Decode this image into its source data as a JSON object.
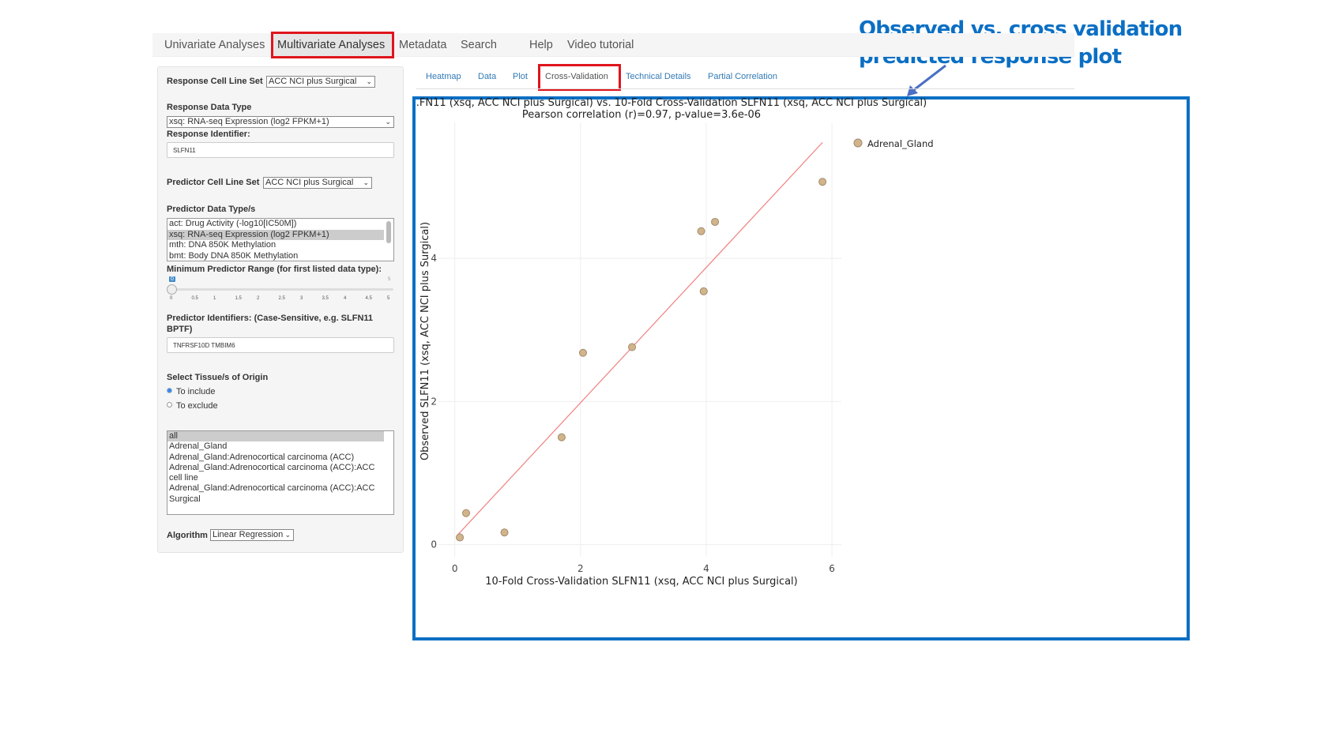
{
  "annotation": {
    "line1": "Observed vs. cross validation",
    "line2": "predicted response plot"
  },
  "navbar": {
    "items": [
      "Univariate Analyses",
      "Multivariate Analyses",
      "Metadata",
      "Search",
      "Help",
      "Video tutorial"
    ],
    "active": "Multivariate Analyses"
  },
  "sidebar": {
    "response_cell_line_set_label": "Response Cell Line Set",
    "response_cell_line_set": "ACC NCI plus Surgical",
    "response_data_type_label": "Response Data Type",
    "response_data_type": "xsq: RNA-seq Expression (log2 FPKM+1)",
    "response_identifier_label": "Response Identifier:",
    "response_identifier": "SLFN11",
    "predictor_cell_line_set_label": "Predictor Cell Line Set",
    "predictor_cell_line_set": "ACC NCI plus Surgical",
    "predictor_data_types_label": "Predictor Data Type/s",
    "predictor_data_types": [
      "act: Drug Activity (-log10[IC50M])",
      "xsq: RNA-seq Expression (log2 FPKM+1)",
      "mth: DNA 850K Methylation",
      "bmt: Body DNA 850K Methylation"
    ],
    "min_range_label": "Minimum Predictor Range (for first listed data type):",
    "slider": {
      "value": "0",
      "max_label": "5",
      "ticks": [
        "0",
        "0.5",
        "1",
        "1.5",
        "2",
        "2.5",
        "3",
        "3.5",
        "4",
        "4.5",
        "5"
      ]
    },
    "predictor_identifiers_label": "Predictor Identifiers: (Case-Sensitive, e.g. SLFN11 BPTF)",
    "predictor_identifiers": "TNFRSF10D TMBIM6",
    "tissue_label": "Select Tissue/s of Origin",
    "radio_include": "To include",
    "radio_exclude": "To exclude",
    "tissues": [
      "all",
      "Adrenal_Gland",
      "Adrenal_Gland:Adrenocortical carcinoma (ACC)",
      "Adrenal_Gland:Adrenocortical carcinoma (ACC):ACC cell line",
      "Adrenal_Gland:Adrenocortical carcinoma (ACC):ACC Surgical"
    ],
    "algorithm_label": "Algorithm",
    "algorithm": "Linear Regression"
  },
  "tabs": [
    "Heatmap",
    "Data",
    "Plot",
    "Cross-Validation",
    "Technical Details",
    "Partial Correlation"
  ],
  "colors": {
    "accent": "#0b6fc4",
    "highlight": "#e0141c",
    "point": "#d2b48c",
    "fit": "#f08080"
  },
  "chart_data": {
    "type": "scatter",
    "title": ".FN11 (xsq, ACC NCI plus Surgical) vs. 10-Fold Cross-Validation SLFN11 (xsq, ACC NCI plus Surgical)",
    "subtitle": "Pearson correlation (r)=0.97, p-value=3.6e-06",
    "xlabel": "10-Fold Cross-Validation SLFN11 (xsq, ACC NCI plus Surgical)",
    "ylabel": "Observed SLFN11 (xsq, ACC NCI plus Surgical)",
    "xlim": [
      -0.26,
      6.15
    ],
    "ylim": [
      -0.17,
      5.9
    ],
    "xticks": [
      "0",
      "2",
      "4",
      "6"
    ],
    "yticks": [
      "0",
      "2",
      "4"
    ],
    "grid": true,
    "legend_position": "top-right",
    "series": [
      {
        "name": "Adrenal_Gland",
        "x": [
          0.08,
          0.18,
          0.79,
          1.7,
          2.04,
          2.82,
          3.92,
          4.14,
          3.96,
          5.85
        ],
        "y": [
          0.1,
          0.44,
          0.17,
          1.5,
          2.68,
          2.76,
          4.38,
          4.51,
          3.54,
          5.07
        ]
      }
    ],
    "fit_line": {
      "x": [
        0.05,
        5.85
      ],
      "y": [
        0.14,
        5.62
      ]
    }
  }
}
